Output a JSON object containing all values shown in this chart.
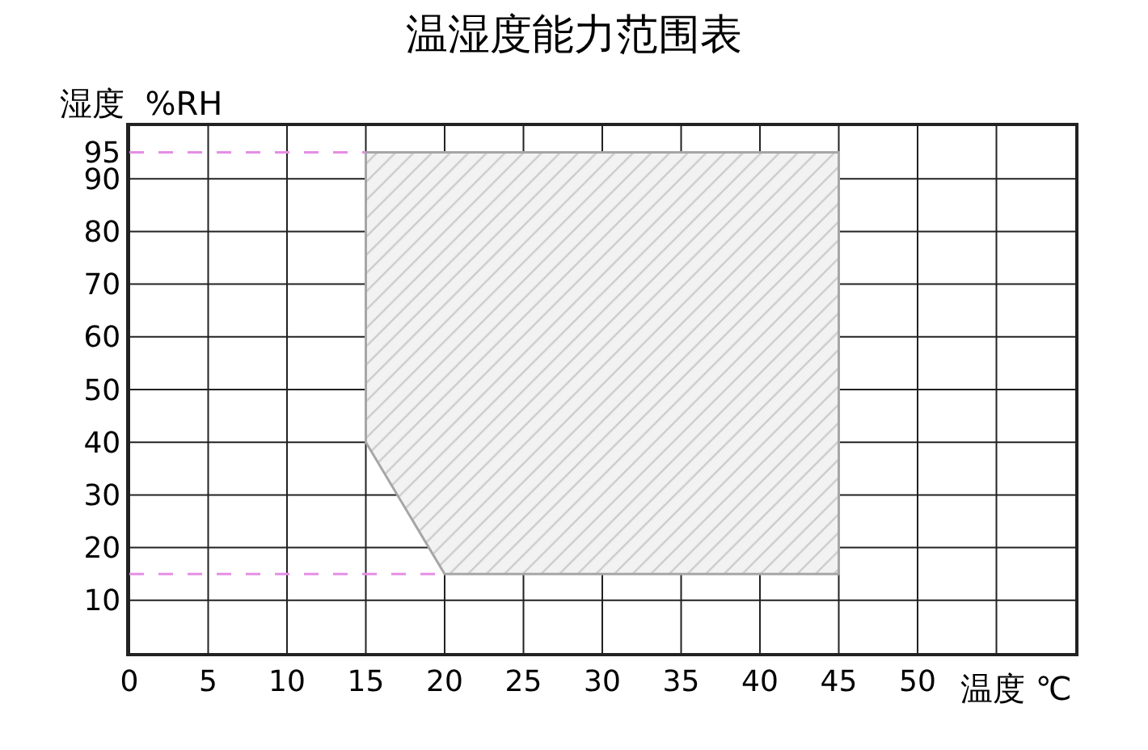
{
  "chart_data": {
    "type": "area",
    "title": "温湿度能力范围表",
    "xlabel": "温度 ℃",
    "ylabel": "湿度  %RH",
    "series": [
      {
        "x": [
          15,
          15,
          20,
          45,
          45,
          15
        ],
        "values": [
          95,
          40,
          15,
          15,
          95,
          95
        ],
        "color": "#a6a6a6"
      }
    ],
    "xlim": [
      0,
      60
    ],
    "ylim": [
      0,
      100
    ],
    "xticks": [
      0,
      5,
      10,
      15,
      20,
      25,
      30,
      35,
      40,
      45,
      50,
      {
        "value": 55,
        "label": null
      }
    ],
    "yticks": [
      10,
      20,
      30,
      40,
      50,
      60,
      70,
      80,
      90,
      95
    ],
    "ref_lines": [
      {
        "axis": "y",
        "value": 95,
        "color": "#e58ee5",
        "line_style": "dashed"
      },
      {
        "axis": "y",
        "value": 15,
        "color": "#e58ee5",
        "line_style": "dashed"
      }
    ],
    "grid": true
  }
}
